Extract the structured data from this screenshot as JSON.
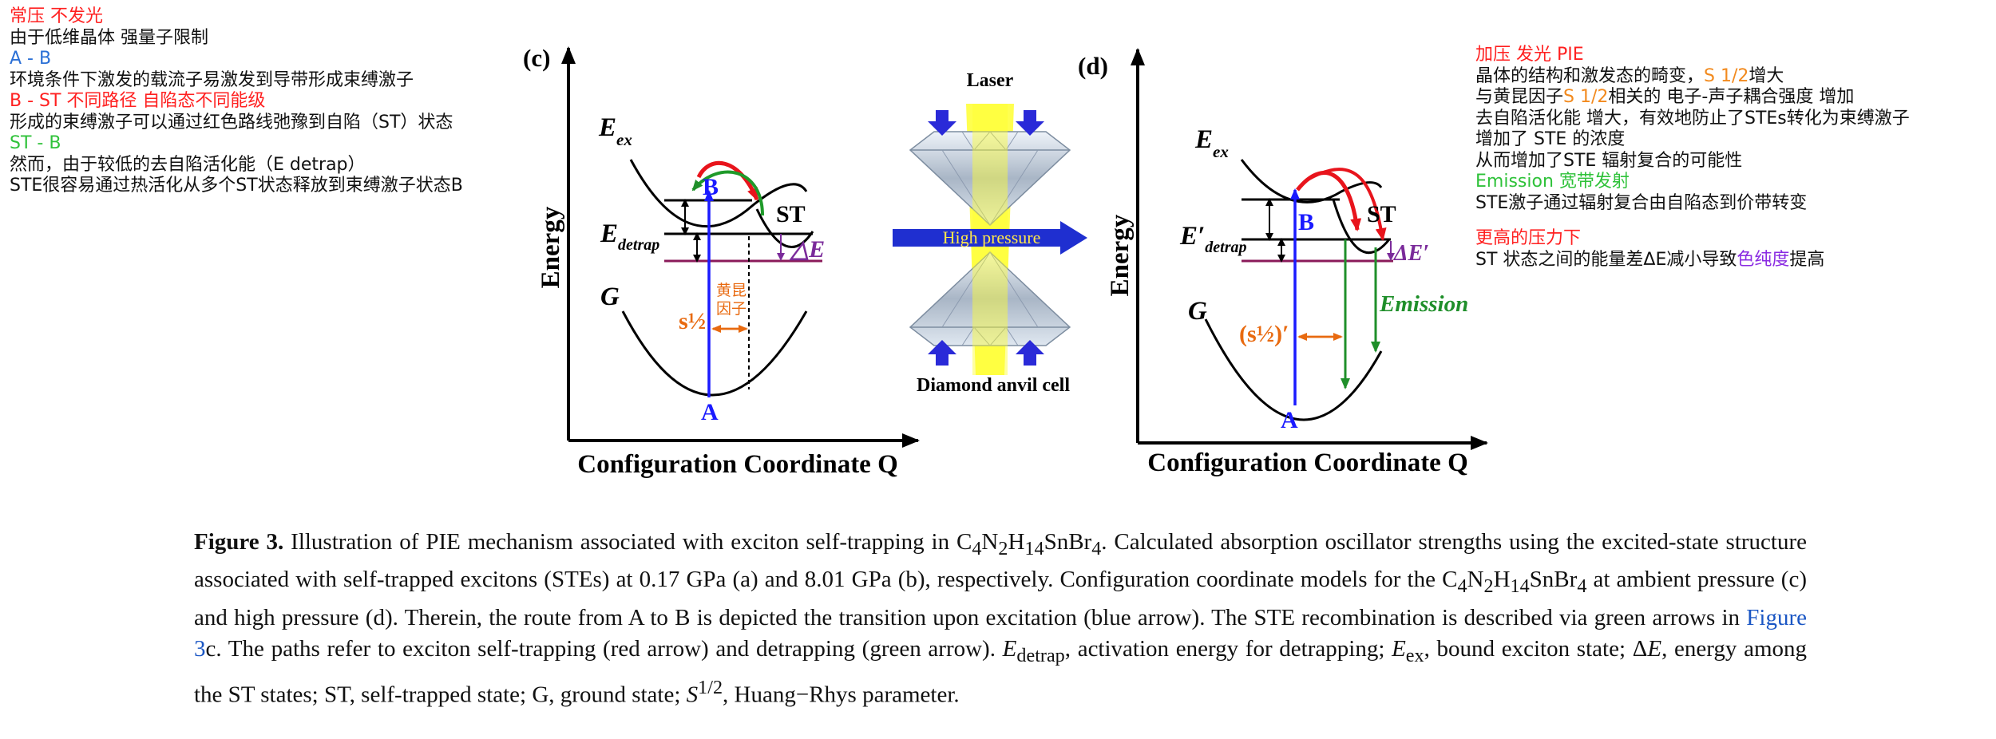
{
  "notes_left": {
    "l1": "常压 不发光",
    "l2": "由于低维晶体 强量子限制",
    "l3": "A - B",
    "l4": "环境条件下激发的载流子易激发到导带形成束缚激子",
    "l5": "B - ST 不同路径 自陷态不同能级",
    "l6": "形成的束缚激子可以通过红色路线弛豫到自陷（ST）状态",
    "l7": "ST - B",
    "l8": "然而，由于较低的去自陷活化能（E detrap）",
    "l9": "STE很容易通过热活化从多个ST状态释放到束缚激子状态B"
  },
  "notes_right": {
    "l1": "加压 发光  PIE",
    "l2a": "晶体的结构和激发态的畸变，",
    "l2b": "S 1/2",
    "l2c": "增大",
    "l3a": "与黄昆因子",
    "l3b": "S 1/2",
    "l3c": "相关的 电子-声子耦合强度 增加",
    "l4": "去自陷活化能 增大，有效地防止了STEs转化为束缚激子",
    "l5": "增加了 STE 的浓度",
    "l6": "从而增加了STE 辐射复合的可能性",
    "l7": "Emission 宽带发射",
    "l8": "STE激子通过辐射复合由自陷态到价带转变",
    "l9": "更高的压力下",
    "l10a": "ST 状态之间的能量差ΔE减小导致",
    "l10b": "色纯度",
    "l10c": "提高"
  },
  "panel_c": {
    "label": "(c)",
    "eex_main": "E",
    "eex_sub": "ex",
    "edetrap_main": "E",
    "edetrap_sub": "detrap",
    "st": "ST",
    "b": "B",
    "delta_e": "△E",
    "g": "G",
    "s_half": "s½",
    "hk_1": "黄昆",
    "hk_2": "因子",
    "a": "A",
    "ylabel": "Energy",
    "xlabel": "Configuration Coordinate Q"
  },
  "panel_d": {
    "label": "(d)",
    "eex_main": "E",
    "eex_sub": "ex",
    "edetrap_main": "E′",
    "edetrap_sub": "detrap",
    "st": "ST",
    "b": "B",
    "delta_e": "ΔE′",
    "g": "G",
    "s_half": "(s½)′",
    "emission": "Emission",
    "a": "A",
    "ylabel": "Energy",
    "xlabel": "Configuration Coordinate Q"
  },
  "dac": {
    "laser": "Laser",
    "high_pressure": "High pressure",
    "cell": "Diamond anvil cell"
  },
  "caption": {
    "figno": "Figure 3.",
    "t1": " Illustration of PIE mechanism associated with exciton self-trapping in C",
    "t2": "4",
    "t3": "N",
    "t4": "2",
    "t5": "H",
    "t6": "14",
    "t7": "SnBr",
    "t8": "4",
    "t9": ". Calculated absorption oscillator strengths using the excited-state structure associated with self-trapped excitons (STEs) at 0.17 GPa (a) and 8.01 GPa (b), respectively. Configuration coordinate models for the C",
    "t10": "4",
    "t11": "N",
    "t12": "2",
    "t13": "H",
    "t14": "14",
    "t15": "SnBr",
    "t16": "4",
    "t17": " at ambient pressure (c) and high pressure (d). Therein, the route from A to B is depicted the transition upon excitation (blue arrow). The STE recombination is described via green arrows in ",
    "link": "Figure 3",
    "t18": "c. The paths refer to exciton self-trapping (red arrow) and detrapping (green arrow). ",
    "e1": "E",
    "e1sub": "detrap",
    "t19": ", activation energy for detrapping; ",
    "e2": "E",
    "e2sub": "ex",
    "t20": ", bound exciton state; Δ",
    "e3": "E",
    "t21": ", energy among the ST states; ST, self-trapped state; G, ground state; ",
    "e4": "S",
    "e4sup": "1/2",
    "t22": ", Huang−Rhys parameter."
  }
}
